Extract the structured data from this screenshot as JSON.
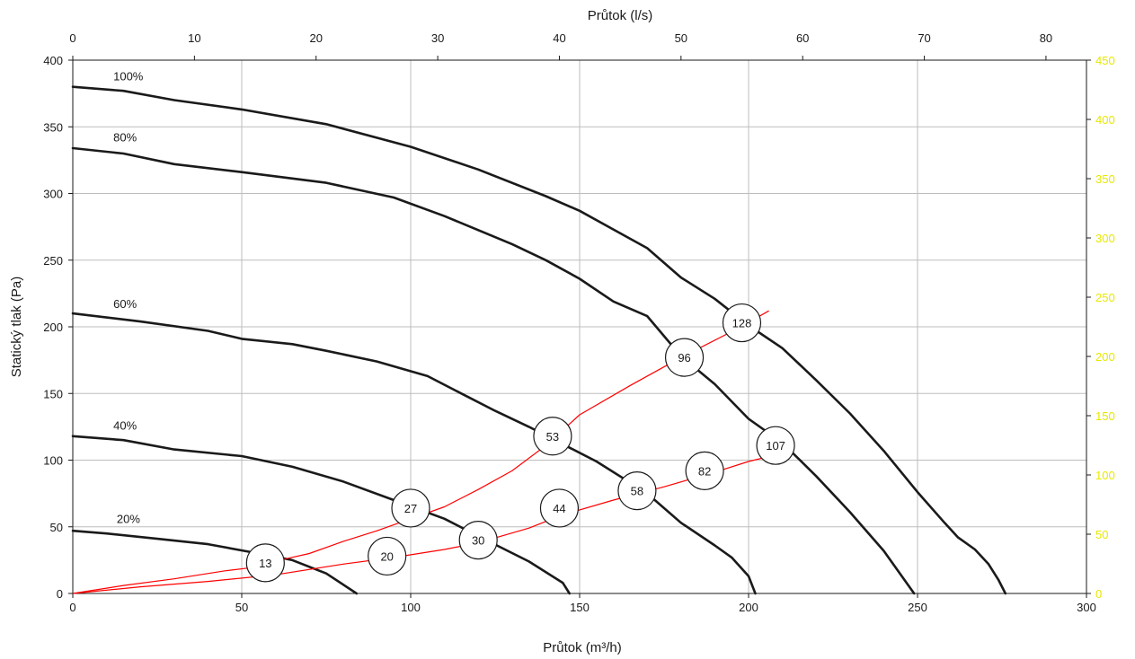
{
  "chart_data": {
    "type": "line",
    "xlabel_bottom": "Průtok (m³/h)",
    "xlabel_top": "Průtok (l/s)",
    "ylabel": "Statický tlak (Pa)",
    "x_ticks": [
      "0",
      "50",
      "100",
      "150",
      "200",
      "250",
      "300"
    ],
    "x_top_ticks": [
      "0",
      "10",
      "20",
      "30",
      "40",
      "50",
      "60",
      "70",
      "80"
    ],
    "y_ticks": [
      "0",
      "50",
      "100",
      "150",
      "200",
      "250",
      "300",
      "350",
      "400"
    ],
    "y_right_ticks": [
      "0",
      "50",
      "100",
      "150",
      "200",
      "250",
      "300",
      "350",
      "400",
      "450"
    ],
    "xlim": [
      0,
      300
    ],
    "x_top_lim": [
      0,
      83.33
    ],
    "ylim": [
      0,
      400
    ],
    "y_right_lim": [
      0,
      450
    ],
    "grid": true,
    "colors": {
      "fan_curves": "#1a1a1a",
      "system_curves": "#ff0000",
      "right_axis": "#e8e800",
      "grid": "#bdbdbd"
    },
    "series": [
      {
        "name": "100%",
        "kind": "fan",
        "points": [
          [
            0,
            380
          ],
          [
            15,
            377
          ],
          [
            30,
            370
          ],
          [
            50,
            363
          ],
          [
            75,
            352
          ],
          [
            100,
            335
          ],
          [
            120,
            318
          ],
          [
            140,
            298
          ],
          [
            150,
            287
          ],
          [
            160,
            273
          ],
          [
            170,
            259
          ],
          [
            180,
            237
          ],
          [
            190,
            221
          ],
          [
            200,
            201
          ],
          [
            210,
            184
          ],
          [
            220,
            160
          ],
          [
            230,
            135
          ],
          [
            240,
            107
          ],
          [
            250,
            76
          ],
          [
            258,
            53
          ],
          [
            262,
            42
          ],
          [
            267,
            33
          ],
          [
            271,
            22
          ],
          [
            274,
            10
          ],
          [
            276,
            0
          ]
        ]
      },
      {
        "name": "80%",
        "kind": "fan",
        "points": [
          [
            0,
            334
          ],
          [
            15,
            330
          ],
          [
            30,
            322
          ],
          [
            50,
            316
          ],
          [
            75,
            308
          ],
          [
            95,
            297
          ],
          [
            110,
            283
          ],
          [
            130,
            262
          ],
          [
            140,
            250
          ],
          [
            150,
            236
          ],
          [
            160,
            219
          ],
          [
            170,
            208
          ],
          [
            180,
            178
          ],
          [
            190,
            157
          ],
          [
            200,
            131
          ],
          [
            210,
            113
          ],
          [
            220,
            88
          ],
          [
            230,
            61
          ],
          [
            240,
            32
          ],
          [
            249,
            0
          ]
        ]
      },
      {
        "name": "60%",
        "kind": "fan",
        "points": [
          [
            0,
            210
          ],
          [
            20,
            204
          ],
          [
            40,
            197
          ],
          [
            50,
            191
          ],
          [
            65,
            187
          ],
          [
            75,
            182
          ],
          [
            90,
            174
          ],
          [
            105,
            163
          ],
          [
            115,
            150
          ],
          [
            125,
            137
          ],
          [
            135,
            125
          ],
          [
            145,
            112
          ],
          [
            155,
            99
          ],
          [
            165,
            83
          ],
          [
            170,
            75
          ],
          [
            180,
            53
          ],
          [
            190,
            36
          ],
          [
            195,
            27
          ],
          [
            200,
            13
          ],
          [
            202,
            0
          ]
        ]
      },
      {
        "name": "40%",
        "kind": "fan",
        "points": [
          [
            0,
            118
          ],
          [
            15,
            115
          ],
          [
            30,
            108
          ],
          [
            50,
            103
          ],
          [
            65,
            95
          ],
          [
            80,
            84
          ],
          [
            95,
            70
          ],
          [
            110,
            56
          ],
          [
            120,
            43
          ],
          [
            135,
            24
          ],
          [
            145,
            8
          ],
          [
            147,
            0
          ]
        ]
      },
      {
        "name": "20%",
        "kind": "fan",
        "points": [
          [
            0,
            47
          ],
          [
            10,
            45
          ],
          [
            25,
            41
          ],
          [
            40,
            37
          ],
          [
            55,
            30
          ],
          [
            65,
            25
          ],
          [
            75,
            15
          ],
          [
            84,
            0
          ]
        ]
      },
      {
        "kind": "system",
        "points": [
          [
            0,
            0
          ],
          [
            15,
            6
          ],
          [
            30,
            11
          ],
          [
            45,
            17
          ],
          [
            55,
            20
          ],
          [
            63,
            26
          ],
          [
            70,
            30
          ],
          [
            80,
            39
          ],
          [
            90,
            47
          ],
          [
            100,
            56
          ],
          [
            110,
            65
          ],
          [
            120,
            78
          ],
          [
            130,
            92
          ],
          [
            140,
            111
          ],
          [
            150,
            134
          ],
          [
            165,
            156
          ],
          [
            180,
            177
          ],
          [
            197,
            199
          ],
          [
            206,
            212
          ]
        ]
      },
      {
        "kind": "system",
        "points": [
          [
            0,
            0
          ],
          [
            20,
            5
          ],
          [
            40,
            9
          ],
          [
            60,
            14
          ],
          [
            80,
            22
          ],
          [
            95,
            27
          ],
          [
            110,
            33
          ],
          [
            120,
            38
          ],
          [
            135,
            49
          ],
          [
            145,
            59
          ],
          [
            160,
            70
          ],
          [
            175,
            80
          ],
          [
            190,
            91
          ],
          [
            200,
            99
          ],
          [
            208,
            104
          ]
        ]
      }
    ],
    "series_labels": [
      {
        "text": "100%",
        "x": 12,
        "y": 385
      },
      {
        "text": "80%",
        "x": 12,
        "y": 339
      },
      {
        "text": "60%",
        "x": 12,
        "y": 214
      },
      {
        "text": "40%",
        "x": 12,
        "y": 123
      },
      {
        "text": "20%",
        "x": 13,
        "y": 53
      }
    ],
    "point_labels": [
      {
        "text": "128",
        "x": 198,
        "y": 203
      },
      {
        "text": "96",
        "x": 181,
        "y": 177
      },
      {
        "text": "53",
        "x": 142,
        "y": 118
      },
      {
        "text": "107",
        "x": 208,
        "y": 111
      },
      {
        "text": "82",
        "x": 187,
        "y": 92
      },
      {
        "text": "58",
        "x": 167,
        "y": 77
      },
      {
        "text": "27",
        "x": 100,
        "y": 64
      },
      {
        "text": "44",
        "x": 144,
        "y": 64
      },
      {
        "text": "30",
        "x": 120,
        "y": 40
      },
      {
        "text": "20",
        "x": 93,
        "y": 28
      },
      {
        "text": "13",
        "x": 57,
        "y": 23
      }
    ]
  }
}
